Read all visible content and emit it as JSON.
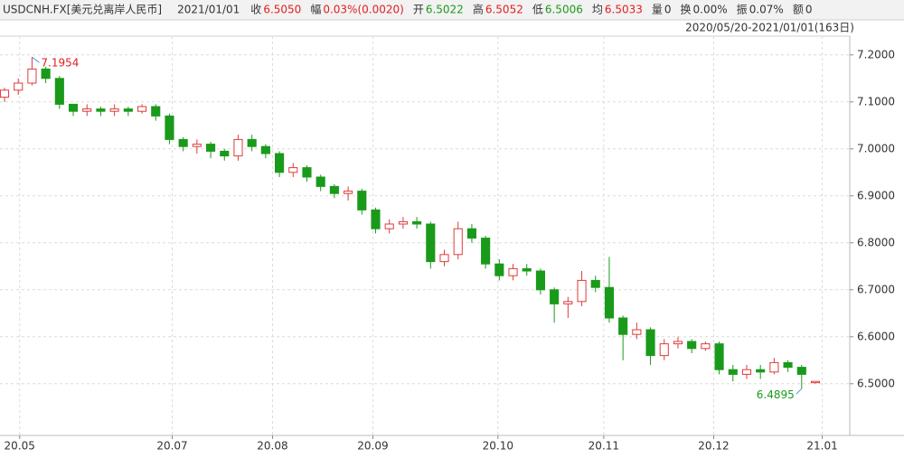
{
  "chart_data": {
    "type": "candlestick",
    "header": {
      "symbol": "USDCNH.FX[美元兑离岸人民币]",
      "date": "2021/01/01",
      "fields": [
        {
          "label": "收",
          "value": "6.5050",
          "color": "#e02020"
        },
        {
          "label": "幅",
          "value": "0.03%(0.0020)",
          "color": "#e02020"
        },
        {
          "label": "开",
          "value": "6.5022",
          "color": "#1a9a1a"
        },
        {
          "label": "高",
          "value": "6.5052",
          "color": "#e02020"
        },
        {
          "label": "低",
          "value": "6.5006",
          "color": "#1a9a1a"
        },
        {
          "label": "均",
          "value": "6.5033",
          "color": "#e02020"
        },
        {
          "label": "量",
          "value": "0",
          "color": "#333333"
        },
        {
          "label": "换",
          "value": "0.00%",
          "color": "#333333"
        },
        {
          "label": "振",
          "value": "0.07%",
          "color": "#333333"
        },
        {
          "label": "额",
          "value": "0",
          "color": "#333333"
        }
      ]
    },
    "range_label": "2020/05/20-2021/01/01(163日)",
    "up_color": "#e03a3a",
    "down_color": "#1a9a1a",
    "open": [
      7.11,
      7.125,
      7.14,
      7.17,
      7.15,
      7.095,
      7.08,
      7.085,
      7.08,
      7.085,
      7.08,
      7.09,
      7.07,
      7.02,
      7.005,
      7.01,
      6.995,
      6.985,
      7.02,
      7.005,
      6.99,
      6.95,
      6.96,
      6.94,
      6.92,
      6.905,
      6.91,
      6.87,
      6.83,
      6.84,
      6.845,
      6.84,
      6.76,
      6.775,
      6.83,
      6.81,
      6.755,
      6.73,
      6.745,
      6.74,
      6.7,
      6.67,
      6.675,
      6.72,
      6.705,
      6.64,
      6.605,
      6.615,
      6.56,
      6.585,
      6.59,
      6.575,
      6.585,
      6.53,
      6.52,
      6.53,
      6.525,
      6.545,
      6.535,
      6.5022
    ],
    "high": [
      7.13,
      7.15,
      7.1954,
      7.175,
      7.155,
      7.095,
      7.095,
      7.09,
      7.095,
      7.09,
      7.095,
      7.095,
      7.075,
      7.025,
      7.02,
      7.015,
      7.0,
      7.03,
      7.03,
      7.01,
      6.995,
      6.97,
      6.965,
      6.945,
      6.925,
      6.92,
      6.915,
      6.875,
      6.85,
      6.855,
      6.855,
      6.845,
      6.785,
      6.845,
      6.84,
      6.815,
      6.765,
      6.755,
      6.755,
      6.745,
      6.705,
      6.685,
      6.74,
      6.73,
      6.77,
      6.645,
      6.63,
      6.62,
      6.595,
      6.6,
      6.595,
      6.59,
      6.59,
      6.54,
      6.54,
      6.54,
      6.555,
      6.55,
      6.54,
      6.5052
    ],
    "low": [
      7.1,
      7.115,
      7.135,
      7.14,
      7.085,
      7.07,
      7.07,
      7.07,
      7.07,
      7.07,
      7.075,
      7.06,
      7.01,
      6.995,
      6.99,
      6.98,
      6.975,
      6.975,
      6.995,
      6.98,
      6.94,
      6.94,
      6.93,
      6.91,
      6.895,
      6.89,
      6.86,
      6.82,
      6.82,
      6.83,
      6.83,
      6.745,
      6.75,
      6.765,
      6.8,
      6.745,
      6.72,
      6.72,
      6.73,
      6.69,
      6.63,
      6.64,
      6.665,
      6.695,
      6.63,
      6.55,
      6.595,
      6.54,
      6.55,
      6.575,
      6.565,
      6.57,
      6.52,
      6.505,
      6.51,
      6.51,
      6.52,
      6.525,
      6.4895,
      6.5006
    ],
    "close": [
      7.125,
      7.14,
      7.17,
      7.15,
      7.095,
      7.08,
      7.085,
      7.08,
      7.085,
      7.08,
      7.09,
      7.07,
      7.02,
      7.005,
      7.01,
      6.995,
      6.985,
      7.02,
      7.005,
      6.99,
      6.95,
      6.96,
      6.94,
      6.92,
      6.905,
      6.91,
      6.87,
      6.83,
      6.84,
      6.845,
      6.84,
      6.76,
      6.775,
      6.83,
      6.81,
      6.755,
      6.73,
      6.745,
      6.74,
      6.7,
      6.67,
      6.675,
      6.72,
      6.705,
      6.64,
      6.605,
      6.615,
      6.56,
      6.585,
      6.59,
      6.575,
      6.585,
      6.53,
      6.52,
      6.53,
      6.525,
      6.545,
      6.535,
      6.52,
      6.505
    ],
    "max_label": "7.1954",
    "min_label": "6.4895",
    "ylim": [
      6.39,
      7.24
    ],
    "yticks": [
      {
        "value": 6.5,
        "label": "6.5000"
      },
      {
        "value": 6.6,
        "label": "6.6000"
      },
      {
        "value": 6.7,
        "label": "6.7000"
      },
      {
        "value": 6.8,
        "label": "6.8000"
      },
      {
        "value": 6.9,
        "label": "6.9000"
      },
      {
        "value": 7.0,
        "label": "7.0000"
      },
      {
        "value": 7.1,
        "label": "7.1000"
      },
      {
        "value": 7.2,
        "label": "7.2000"
      }
    ],
    "xlim": [
      -0.33,
      61.5
    ],
    "xticks": [
      {
        "value": 1.1,
        "label": "20.05"
      },
      {
        "value": 12.2,
        "label": "20.07"
      },
      {
        "value": 19.5,
        "label": "20.08"
      },
      {
        "value": 26.8,
        "label": "20.09"
      },
      {
        "value": 35.9,
        "label": "20.10"
      },
      {
        "value": 43.6,
        "label": "20.11"
      },
      {
        "value": 51.6,
        "label": "20.12"
      },
      {
        "value": 59.5,
        "label": "21.01"
      }
    ],
    "grid": true
  }
}
